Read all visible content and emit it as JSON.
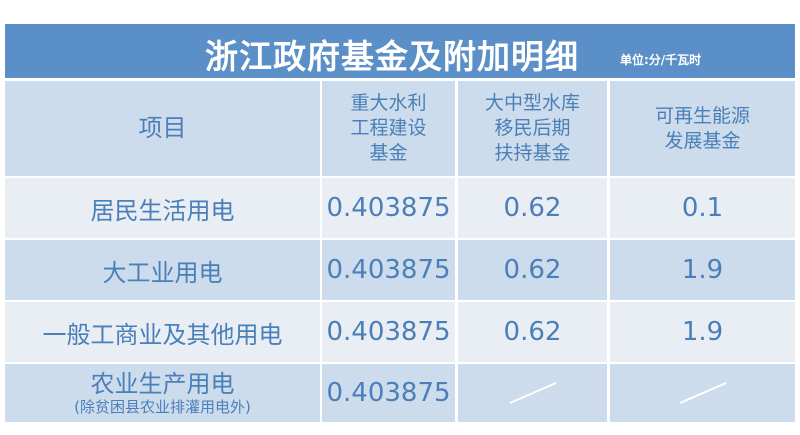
{
  "title": "浙江政府基金及附加明细",
  "unit": "单位:分/千瓦时",
  "headers": [
    "项目",
    [
      "重大水利",
      "工程建设",
      "基金"
    ],
    [
      "大中型水库",
      "移民后期",
      "扶持基金"
    ],
    [
      "可再生能源",
      "发展基金"
    ]
  ],
  "rows": [
    {
      "item": "居民生活用电",
      "v": [
        "0.403875",
        "0.62",
        "0.1"
      ]
    },
    {
      "item": "大工业用电",
      "v": [
        "0.403875",
        "0.62",
        "1.9"
      ]
    },
    {
      "item": "一般工商业及其他用电",
      "v": [
        "0.403875",
        "0.62",
        "1.9"
      ]
    },
    {
      "item": "农业生产用电",
      "note": "(除贫困县农业排灌用电外)",
      "v": [
        "0.403875",
        null,
        null
      ]
    }
  ],
  "colors": {
    "title_bg": "#5b8fc7",
    "header_bg": "#cddcec",
    "row_light": "#e9eef5",
    "text": "#4a7fb8"
  }
}
